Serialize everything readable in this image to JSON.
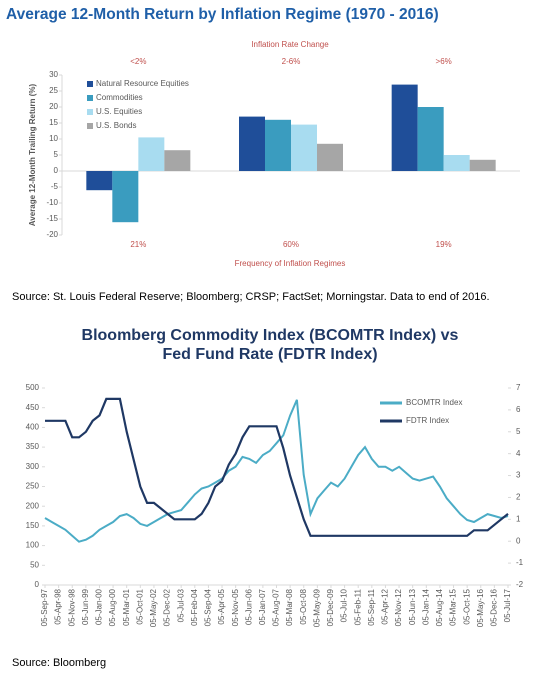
{
  "chart_data": [
    {
      "type": "bar",
      "title": "Average 12-Month Return by Inflation Regime (1970 - 2016)",
      "top_axis_label": "Inflation Rate Change",
      "categories": [
        "<2%",
        "2-6%",
        ">6%"
      ],
      "category_footnotes": [
        "21%",
        "60%",
        "19%"
      ],
      "footnote_axis_label": "Frequency of Inflation Regimes",
      "y_label": "Average 12-Month Trailing Return (%)",
      "ylim": [
        -20,
        30
      ],
      "yticks": [
        -20,
        -15,
        -10,
        -5,
        0,
        5,
        10,
        15,
        20,
        25,
        30
      ],
      "legend": "top-left",
      "series": [
        {
          "name": "Natural Resource Equities",
          "color": "#1f4e99",
          "values": [
            -6,
            17,
            27
          ]
        },
        {
          "name": "Commodities",
          "color": "#3a9cbf",
          "values": [
            -16,
            16,
            20
          ]
        },
        {
          "name": "U.S. Equities",
          "color": "#a8dcf0",
          "values": [
            10.5,
            14.5,
            5
          ]
        },
        {
          "name": "U.S. Bonds",
          "color": "#a6a6a6",
          "values": [
            6.5,
            8.5,
            3.5
          ]
        }
      ],
      "source": "Source: St. Louis Federal Reserve; Bloomberg; CRSP; FactSet; Morningstar. Data to end of 2016."
    },
    {
      "type": "line",
      "title": [
        "Bloomberg Commodity Index (BCOMTR Index) vs",
        "Fed Fund Rate (FDTR Index)"
      ],
      "categories": [
        "05-Sep-97",
        null,
        "05-Apr-98",
        null,
        "05-Nov-98",
        null,
        "05-Jun-99",
        null,
        "05-Jan-00",
        null,
        "05-Aug-00",
        null,
        "05-Mar-01",
        null,
        "05-Oct-01",
        null,
        "05-May-02",
        null,
        "05-Dec-02",
        null,
        "05-Jul-03",
        null,
        "05-Feb-04",
        null,
        "05-Sep-04",
        null,
        "05-Apr-05",
        null,
        "05-Nov-05",
        null,
        "05-Jun-06",
        null,
        "05-Jan-07",
        null,
        "05-Aug-07",
        null,
        "05-Mar-08",
        null,
        "05-Oct-08",
        null,
        "05-May-09",
        null,
        "05-Dec-09",
        null,
        "05-Jul-10",
        null,
        "05-Feb-11",
        null,
        "05-Sep-11",
        null,
        "05-Apr-12",
        null,
        "05-Nov-12",
        null,
        "05-Jun-13",
        null,
        "05-Jan-14",
        null,
        "05-Aug-14",
        null,
        "05-Mar-15",
        null,
        "05-Oct-15",
        null,
        "05-May-16",
        null,
        "05-Dec-16",
        null,
        "05-Jul-17"
      ],
      "ylim": [
        0,
        500
      ],
      "yticks": [
        0,
        50,
        100,
        150,
        200,
        250,
        300,
        350,
        400,
        450,
        500
      ],
      "y2lim": [
        -2,
        7
      ],
      "y2ticks": [
        -2,
        -1,
        0,
        1,
        2,
        3,
        4,
        5,
        6,
        7
      ],
      "legend": "top-right",
      "series": [
        {
          "name": "BCOMTR Index",
          "color": "#4bacc6",
          "values": [
            170,
            160,
            150,
            140,
            125,
            110,
            115,
            125,
            140,
            150,
            160,
            175,
            180,
            170,
            155,
            150,
            160,
            170,
            180,
            185,
            190,
            210,
            230,
            245,
            250,
            260,
            270,
            290,
            300,
            325,
            320,
            310,
            330,
            340,
            360,
            380,
            430,
            470,
            280,
            180,
            220,
            240,
            260,
            250,
            270,
            300,
            330,
            350,
            320,
            300,
            300,
            290,
            300,
            285,
            270,
            265,
            270,
            275,
            250,
            220,
            200,
            180,
            165,
            160,
            170,
            180,
            175,
            170,
            175
          ]
        },
        {
          "name": "FDTR Index",
          "color": "#1f3864",
          "axis": "y2",
          "values": [
            5.5,
            5.5,
            5.5,
            5.5,
            4.75,
            4.75,
            5,
            5.5,
            5.75,
            6.5,
            6.5,
            6.5,
            5,
            3.75,
            2.5,
            1.75,
            1.75,
            1.5,
            1.25,
            1,
            1,
            1,
            1,
            1.25,
            1.75,
            2.5,
            2.75,
            3.5,
            4,
            4.75,
            5.25,
            5.25,
            5.25,
            5.25,
            5.25,
            4.25,
            3,
            2,
            1,
            0.25,
            0.25,
            0.25,
            0.25,
            0.25,
            0.25,
            0.25,
            0.25,
            0.25,
            0.25,
            0.25,
            0.25,
            0.25,
            0.25,
            0.25,
            0.25,
            0.25,
            0.25,
            0.25,
            0.25,
            0.25,
            0.25,
            0.25,
            0.25,
            0.5,
            0.5,
            0.5,
            0.75,
            1,
            1.25
          ]
        }
      ],
      "source": "Source: Bloomberg"
    }
  ]
}
